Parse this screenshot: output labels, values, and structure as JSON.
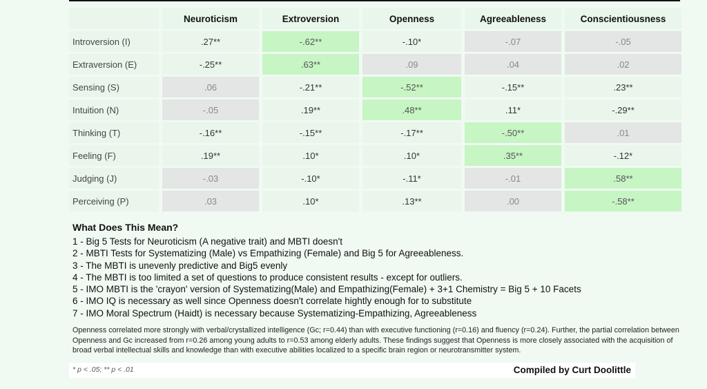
{
  "table": {
    "columns": [
      "Neuroticism",
      "Extroversion",
      "Openness",
      "Agreeableness",
      "Conscientiousness"
    ],
    "rows": [
      {
        "label": "Introversion (I)",
        "cells": [
          {
            "v": ".27**",
            "s": "plain"
          },
          {
            "v": "-.62**",
            "s": "green"
          },
          {
            "v": "-.10*",
            "s": "plain"
          },
          {
            "v": "-.07",
            "s": "grey"
          },
          {
            "v": "-.05",
            "s": "grey"
          }
        ]
      },
      {
        "label": "Extraversion (E)",
        "cells": [
          {
            "v": "-.25**",
            "s": "plain"
          },
          {
            "v": ".63**",
            "s": "green"
          },
          {
            "v": ".09",
            "s": "grey"
          },
          {
            "v": ".04",
            "s": "grey"
          },
          {
            "v": ".02",
            "s": "grey"
          }
        ]
      },
      {
        "label": "Sensing (S)",
        "cells": [
          {
            "v": ".06",
            "s": "grey"
          },
          {
            "v": "-.21**",
            "s": "plain"
          },
          {
            "v": "-.52**",
            "s": "green"
          },
          {
            "v": "-.15**",
            "s": "plain"
          },
          {
            "v": ".23**",
            "s": "plain"
          }
        ]
      },
      {
        "label": "Intuition (N)",
        "cells": [
          {
            "v": "-.05",
            "s": "grey"
          },
          {
            "v": ".19**",
            "s": "plain"
          },
          {
            "v": ".48**",
            "s": "green"
          },
          {
            "v": ".11*",
            "s": "plain"
          },
          {
            "v": "-.29**",
            "s": "plain"
          }
        ]
      },
      {
        "label": "Thinking (T)",
        "cells": [
          {
            "v": "-.16**",
            "s": "plain"
          },
          {
            "v": "-.15**",
            "s": "plain"
          },
          {
            "v": "-.17**",
            "s": "plain"
          },
          {
            "v": "-.50**",
            "s": "green"
          },
          {
            "v": ".01",
            "s": "grey"
          }
        ]
      },
      {
        "label": "Feeling (F)",
        "cells": [
          {
            "v": ".19**",
            "s": "plain"
          },
          {
            "v": ".10*",
            "s": "plain"
          },
          {
            "v": ".10*",
            "s": "plain"
          },
          {
            "v": ".35**",
            "s": "green"
          },
          {
            "v": "-.12*",
            "s": "plain"
          }
        ]
      },
      {
        "label": "Judging (J)",
        "cells": [
          {
            "v": "-.03",
            "s": "grey"
          },
          {
            "v": "-.10*",
            "s": "plain"
          },
          {
            "v": "-.11*",
            "s": "plain"
          },
          {
            "v": "-.01",
            "s": "grey"
          },
          {
            "v": ".58**",
            "s": "green"
          }
        ]
      },
      {
        "label": "Perceiving (P)",
        "cells": [
          {
            "v": ".03",
            "s": "grey"
          },
          {
            "v": ".10*",
            "s": "plain"
          },
          {
            "v": ".13**",
            "s": "plain"
          },
          {
            "v": ".00",
            "s": "grey"
          },
          {
            "v": "-.58**",
            "s": "green"
          }
        ]
      }
    ]
  },
  "colors": {
    "significant": "#c7f5c4",
    "nonsignificant": "#e3e6e4",
    "background": "#f0faf2"
  },
  "meaning": {
    "title": "What Does This Mean?",
    "points": [
      "1 - Big 5 Tests for Neuroticism (A negative trait) and MBTI doesn't",
      "2 - MBTI Tests for Systematizing (Male) vs Empathizing (Female) and Big 5 for Agreeableness.",
      "3 - The MBTI is unevenly predictive and Big5 evenly",
      "4 - The MBTI is too limited a set of questions to produce consistent results - except for outliers.",
      "5 - IMO MBTI is the 'crayon' version of Systematizing(Male) and Empathizing(Female) + 3+1 Chemistry = Big 5 + 10 Facets",
      "6 - IMO IQ is necessary as well since Openness doesn't correlate hightly enough for to substitute",
      "7 - IMO Moral Spectrum (Haidt) is necessary because Systematizing-Empathizing, Agreeableness"
    ]
  },
  "paragraph": "Openness correlated more strongly with verbal/crystallized intelligence (Gc; r=0.44) than with executive functioning (r=0.16) and fluency (r=0.24). Further, the partial correlation between Openness and Gc increased from r=0.26 among young adults to r=0.53 among elderly adults. These findings suggest that Openness is more closely associated with the acquisition of broad verbal intellectual skills and knowledge than with executive abilities localized to a specific brain region or neurotransmitter system.",
  "footer": {
    "p_note": "* p < .05; ** p < .01",
    "credit": "Compiled by Curt Doolittle"
  }
}
